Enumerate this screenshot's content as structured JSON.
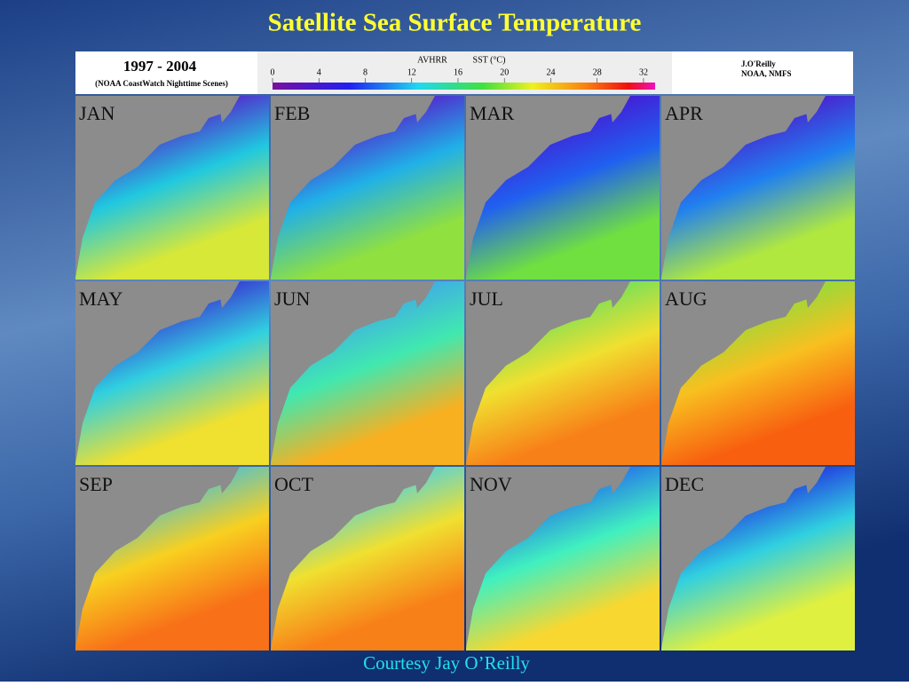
{
  "title": "Satellite Sea Surface Temperature",
  "header": {
    "period": "1997 - 2004",
    "subtitle": "(NOAA CoastWatch Nighttime Scenes)",
    "sensor": "AVHRR",
    "variable": "SST (°C)",
    "author": "J.O'Reilly",
    "agency": "NOAA, NMFS"
  },
  "colorbar": {
    "range": [
      0,
      33
    ],
    "ticks": [
      0,
      4,
      8,
      12,
      16,
      20,
      24,
      28,
      32
    ]
  },
  "panels": [
    "JAN",
    "FEB",
    "MAR",
    "APR",
    "MAY",
    "JUN",
    "JUL",
    "AUG",
    "SEP",
    "OCT",
    "NOV",
    "DEC"
  ],
  "credit": "Courtesy Jay O’Reilly"
}
